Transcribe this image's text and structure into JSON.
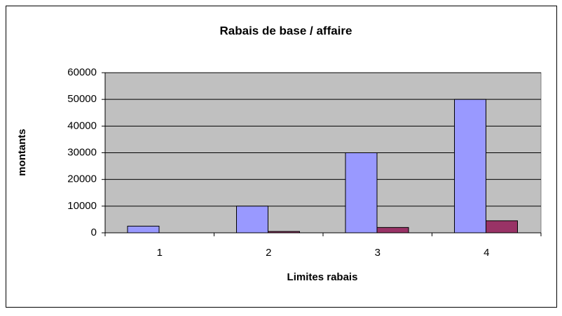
{
  "chart_data": {
    "type": "bar",
    "title": "Rabais de base / affaire",
    "x_label": "Limites rabais",
    "y_label": "montants",
    "categories": [
      "1",
      "2",
      "3",
      "4"
    ],
    "series": [
      {
        "color": "#9999ff",
        "values": [
          2500,
          10000,
          30000,
          50000
        ]
      },
      {
        "color": "#993366",
        "values": [
          0,
          500,
          2000,
          4500
        ]
      }
    ],
    "ylim": [
      0,
      60000
    ],
    "yticks": [
      0,
      10000,
      20000,
      30000,
      40000,
      50000,
      60000
    ],
    "grid": true,
    "plot_background": "#c0c0c0"
  }
}
